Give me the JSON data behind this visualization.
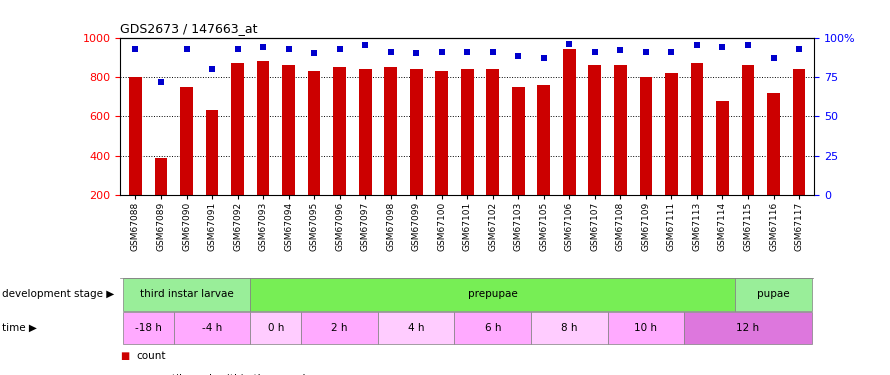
{
  "title": "GDS2673 / 147663_at",
  "samples": [
    "GSM67088",
    "GSM67089",
    "GSM67090",
    "GSM67091",
    "GSM67092",
    "GSM67093",
    "GSM67094",
    "GSM67095",
    "GSM67096",
    "GSM67097",
    "GSM67098",
    "GSM67099",
    "GSM67100",
    "GSM67101",
    "GSM67102",
    "GSM67103",
    "GSM67105",
    "GSM67106",
    "GSM67107",
    "GSM67108",
    "GSM67109",
    "GSM67111",
    "GSM67113",
    "GSM67114",
    "GSM67115",
    "GSM67116",
    "GSM67117"
  ],
  "counts": [
    800,
    390,
    750,
    630,
    870,
    880,
    860,
    830,
    850,
    840,
    850,
    840,
    830,
    840,
    840,
    750,
    760,
    940,
    860,
    860,
    800,
    820,
    870,
    680,
    860,
    720,
    840
  ],
  "percentiles": [
    93,
    72,
    93,
    80,
    93,
    94,
    93,
    90,
    93,
    95,
    91,
    90,
    91,
    91,
    91,
    88,
    87,
    96,
    91,
    92,
    91,
    91,
    95,
    94,
    95,
    87,
    93
  ],
  "bar_color": "#cc0000",
  "dot_color": "#0000cc",
  "ylim_left": [
    200,
    1000
  ],
  "ylim_right": [
    0,
    100
  ],
  "yticks_left": [
    200,
    400,
    600,
    800,
    1000
  ],
  "yticks_right": [
    0,
    25,
    50,
    75,
    100
  ],
  "grid_values": [
    400,
    600,
    800
  ],
  "stage_groups": [
    {
      "label": "third instar larvae",
      "start": 0,
      "end": 5,
      "color": "#99ee99"
    },
    {
      "label": "prepupae",
      "start": 5,
      "end": 24,
      "color": "#77ee55"
    },
    {
      "label": "pupae",
      "start": 24,
      "end": 27,
      "color": "#99ee99"
    }
  ],
  "time_groups": [
    {
      "label": "-18 h",
      "start": 0,
      "end": 2,
      "color": "#ffaaff"
    },
    {
      "label": "-4 h",
      "start": 2,
      "end": 5,
      "color": "#ffaaff"
    },
    {
      "label": "0 h",
      "start": 5,
      "end": 7,
      "color": "#ffccff"
    },
    {
      "label": "2 h",
      "start": 7,
      "end": 10,
      "color": "#ffaaff"
    },
    {
      "label": "4 h",
      "start": 10,
      "end": 13,
      "color": "#ffccff"
    },
    {
      "label": "6 h",
      "start": 13,
      "end": 16,
      "color": "#ffaaff"
    },
    {
      "label": "8 h",
      "start": 16,
      "end": 19,
      "color": "#ffccff"
    },
    {
      "label": "10 h",
      "start": 19,
      "end": 22,
      "color": "#ffaaff"
    },
    {
      "label": "12 h",
      "start": 22,
      "end": 27,
      "color": "#dd77dd"
    }
  ],
  "background_color": "#ffffff",
  "dev_stage_label": "development stage",
  "time_label": "time",
  "bar_width": 0.5
}
